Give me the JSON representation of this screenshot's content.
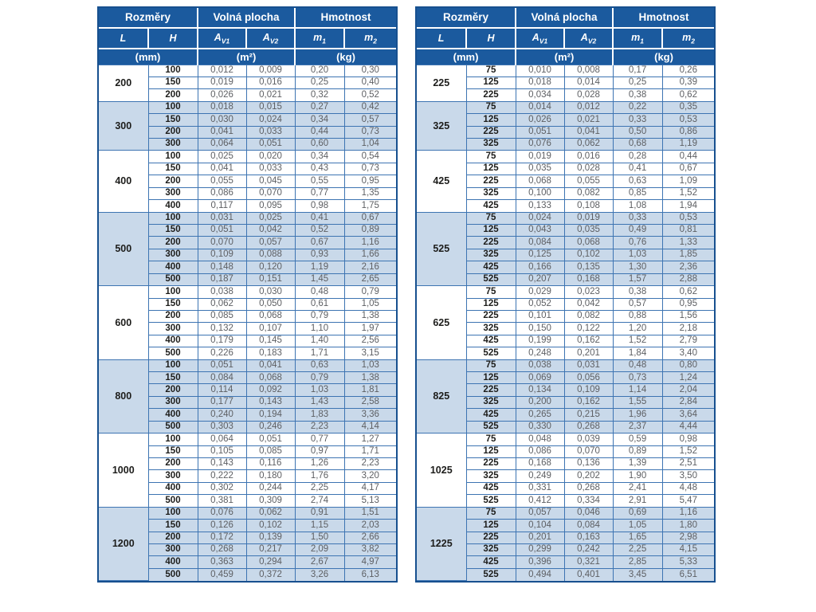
{
  "colors": {
    "header_blue": "#1b5a9e",
    "frame_blue": "#17508f",
    "row_light": "#c9d9ea",
    "row_white": "#ffffff",
    "grid_blue": "#3d74b2",
    "text_dark": "#1d1d1b",
    "text_gray": "#5d5f63"
  },
  "header": {
    "dimensions": "Rozměry",
    "free_area": "Volná plocha",
    "weight": "Hmotnost",
    "col_l": "L",
    "col_h": "H",
    "a_base": "A",
    "av1_sub": "V1",
    "av2_sub": "V2",
    "m_base": "m",
    "m1_sub": "1",
    "m2_sub": "2",
    "unit_mm": "(mm)",
    "unit_m2": "(m²)",
    "unit_kg": "(kg)"
  },
  "tables": [
    {
      "groups": [
        {
          "l": "200",
          "rows": [
            [
              "100",
              "0,012",
              "0,009",
              "0,20",
              "0,30"
            ],
            [
              "150",
              "0,019",
              "0,016",
              "0,25",
              "0,40"
            ],
            [
              "200",
              "0,026",
              "0,021",
              "0,32",
              "0,52"
            ]
          ]
        },
        {
          "l": "300",
          "rows": [
            [
              "100",
              "0,018",
              "0,015",
              "0,27",
              "0,42"
            ],
            [
              "150",
              "0,030",
              "0,024",
              "0,34",
              "0,57"
            ],
            [
              "200",
              "0,041",
              "0,033",
              "0,44",
              "0,73"
            ],
            [
              "300",
              "0,064",
              "0,051",
              "0,60",
              "1,04"
            ]
          ]
        },
        {
          "l": "400",
          "rows": [
            [
              "100",
              "0,025",
              "0,020",
              "0,34",
              "0,54"
            ],
            [
              "150",
              "0,041",
              "0,033",
              "0,43",
              "0,73"
            ],
            [
              "200",
              "0,055",
              "0,045",
              "0,55",
              "0,95"
            ],
            [
              "300",
              "0,086",
              "0,070",
              "0,77",
              "1,35"
            ],
            [
              "400",
              "0,117",
              "0,095",
              "0,98",
              "1,75"
            ]
          ]
        },
        {
          "l": "500",
          "rows": [
            [
              "100",
              "0,031",
              "0,025",
              "0,41",
              "0,67"
            ],
            [
              "150",
              "0,051",
              "0,042",
              "0,52",
              "0,89"
            ],
            [
              "200",
              "0,070",
              "0,057",
              "0,67",
              "1,16"
            ],
            [
              "300",
              "0,109",
              "0,088",
              "0,93",
              "1,66"
            ],
            [
              "400",
              "0,148",
              "0,120",
              "1,19",
              "2,16"
            ],
            [
              "500",
              "0,187",
              "0,151",
              "1,45",
              "2,65"
            ]
          ]
        },
        {
          "l": "600",
          "rows": [
            [
              "100",
              "0,038",
              "0,030",
              "0,48",
              "0,79"
            ],
            [
              "150",
              "0,062",
              "0,050",
              "0,61",
              "1,05"
            ],
            [
              "200",
              "0,085",
              "0,068",
              "0,79",
              "1,38"
            ],
            [
              "300",
              "0,132",
              "0,107",
              "1,10",
              "1,97"
            ],
            [
              "400",
              "0,179",
              "0,145",
              "1,40",
              "2,56"
            ],
            [
              "500",
              "0,226",
              "0,183",
              "1,71",
              "3,15"
            ]
          ]
        },
        {
          "l": "800",
          "rows": [
            [
              "100",
              "0,051",
              "0,041",
              "0,63",
              "1,03"
            ],
            [
              "150",
              "0,084",
              "0,068",
              "0,79",
              "1,38"
            ],
            [
              "200",
              "0,114",
              "0,092",
              "1,03",
              "1,81"
            ],
            [
              "300",
              "0,177",
              "0,143",
              "1,43",
              "2,58"
            ],
            [
              "400",
              "0,240",
              "0,194",
              "1,83",
              "3,36"
            ],
            [
              "500",
              "0,303",
              "0,246",
              "2,23",
              "4,14"
            ]
          ]
        },
        {
          "l": "1000",
          "rows": [
            [
              "100",
              "0,064",
              "0,051",
              "0,77",
              "1,27"
            ],
            [
              "150",
              "0,105",
              "0,085",
              "0,97",
              "1,71"
            ],
            [
              "200",
              "0,143",
              "0,116",
              "1,26",
              "2,23"
            ],
            [
              "300",
              "0,222",
              "0,180",
              "1,76",
              "3,20"
            ],
            [
              "400",
              "0,302",
              "0,244",
              "2,25",
              "4,17"
            ],
            [
              "500",
              "0,381",
              "0,309",
              "2,74",
              "5,13"
            ]
          ]
        },
        {
          "l": "1200",
          "rows": [
            [
              "100",
              "0,076",
              "0,062",
              "0,91",
              "1,51"
            ],
            [
              "150",
              "0,126",
              "0,102",
              "1,15",
              "2,03"
            ],
            [
              "200",
              "0,172",
              "0,139",
              "1,50",
              "2,66"
            ],
            [
              "300",
              "0,268",
              "0,217",
              "2,09",
              "3,82"
            ],
            [
              "400",
              "0,363",
              "0,294",
              "2,67",
              "4,97"
            ],
            [
              "500",
              "0,459",
              "0,372",
              "3,26",
              "6,13"
            ]
          ]
        }
      ]
    },
    {
      "groups": [
        {
          "l": "225",
          "rows": [
            [
              "75",
              "0,010",
              "0,008",
              "0,17",
              "0,26"
            ],
            [
              "125",
              "0,018",
              "0,014",
              "0,25",
              "0,39"
            ],
            [
              "225",
              "0,034",
              "0,028",
              "0,38",
              "0,62"
            ]
          ]
        },
        {
          "l": "325",
          "rows": [
            [
              "75",
              "0,014",
              "0,012",
              "0,22",
              "0,35"
            ],
            [
              "125",
              "0,026",
              "0,021",
              "0,33",
              "0,53"
            ],
            [
              "225",
              "0,051",
              "0,041",
              "0,50",
              "0,86"
            ],
            [
              "325",
              "0,076",
              "0,062",
              "0,68",
              "1,19"
            ]
          ]
        },
        {
          "l": "425",
          "rows": [
            [
              "75",
              "0,019",
              "0,016",
              "0,28",
              "0,44"
            ],
            [
              "125",
              "0,035",
              "0,028",
              "0,41",
              "0,67"
            ],
            [
              "225",
              "0,068",
              "0,055",
              "0,63",
              "1,09"
            ],
            [
              "325",
              "0,100",
              "0,082",
              "0,85",
              "1,52"
            ],
            [
              "425",
              "0,133",
              "0,108",
              "1,08",
              "1,94"
            ]
          ]
        },
        {
          "l": "525",
          "rows": [
            [
              "75",
              "0,024",
              "0,019",
              "0,33",
              "0,53"
            ],
            [
              "125",
              "0,043",
              "0,035",
              "0,49",
              "0,81"
            ],
            [
              "225",
              "0,084",
              "0,068",
              "0,76",
              "1,33"
            ],
            [
              "325",
              "0,125",
              "0,102",
              "1,03",
              "1,85"
            ],
            [
              "425",
              "0,166",
              "0,135",
              "1,30",
              "2,36"
            ],
            [
              "525",
              "0,207",
              "0,168",
              "1,57",
              "2,88"
            ]
          ]
        },
        {
          "l": "625",
          "rows": [
            [
              "75",
              "0,029",
              "0,023",
              "0,38",
              "0,62"
            ],
            [
              "125",
              "0,052",
              "0,042",
              "0,57",
              "0,95"
            ],
            [
              "225",
              "0,101",
              "0,082",
              "0,88",
              "1,56"
            ],
            [
              "325",
              "0,150",
              "0,122",
              "1,20",
              "2,18"
            ],
            [
              "425",
              "0,199",
              "0,162",
              "1,52",
              "2,79"
            ],
            [
              "525",
              "0,248",
              "0,201",
              "1,84",
              "3,40"
            ]
          ]
        },
        {
          "l": "825",
          "rows": [
            [
              "75",
              "0,038",
              "0,031",
              "0,48",
              "0,80"
            ],
            [
              "125",
              "0,069",
              "0,056",
              "0,73",
              "1,24"
            ],
            [
              "225",
              "0,134",
              "0,109",
              "1,14",
              "2,04"
            ],
            [
              "325",
              "0,200",
              "0,162",
              "1,55",
              "2,84"
            ],
            [
              "425",
              "0,265",
              "0,215",
              "1,96",
              "3,64"
            ],
            [
              "525",
              "0,330",
              "0,268",
              "2,37",
              "4,44"
            ]
          ]
        },
        {
          "l": "1025",
          "rows": [
            [
              "75",
              "0,048",
              "0,039",
              "0,59",
              "0,98"
            ],
            [
              "125",
              "0,086",
              "0,070",
              "0,89",
              "1,52"
            ],
            [
              "225",
              "0,168",
              "0,136",
              "1,39",
              "2,51"
            ],
            [
              "325",
              "0,249",
              "0,202",
              "1,90",
              "3,50"
            ],
            [
              "425",
              "0,331",
              "0,268",
              "2,41",
              "4,48"
            ],
            [
              "525",
              "0,412",
              "0,334",
              "2,91",
              "5,47"
            ]
          ]
        },
        {
          "l": "1225",
          "rows": [
            [
              "75",
              "0,057",
              "0,046",
              "0,69",
              "1,16"
            ],
            [
              "125",
              "0,104",
              "0,084",
              "1,05",
              "1,80"
            ],
            [
              "225",
              "0,201",
              "0,163",
              "1,65",
              "2,98"
            ],
            [
              "325",
              "0,299",
              "0,242",
              "2,25",
              "4,15"
            ],
            [
              "425",
              "0,396",
              "0,321",
              "2,85",
              "5,33"
            ],
            [
              "525",
              "0,494",
              "0,401",
              "3,45",
              "6,51"
            ]
          ]
        }
      ]
    }
  ]
}
